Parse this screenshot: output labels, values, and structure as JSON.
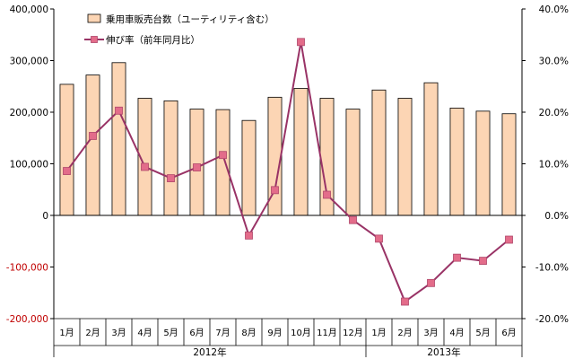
{
  "chart_data": {
    "type": "bar",
    "title": "",
    "categories": [
      "1月",
      "2月",
      "3月",
      "4月",
      "5月",
      "6月",
      "7月",
      "8月",
      "9月",
      "10月",
      "11月",
      "12月",
      "1月",
      "2月",
      "3月",
      "4月",
      "5月",
      "6月"
    ],
    "year_groups": [
      {
        "label": "2012年",
        "count": 12
      },
      {
        "label": "2013年",
        "count": 6
      }
    ],
    "series": [
      {
        "name": "乗用車販売台数（ユーティリティ含む）",
        "type": "bar",
        "axis": "left",
        "values": [
          254000,
          272000,
          296000,
          227000,
          222000,
          206000,
          205000,
          184000,
          229000,
          246000,
          227000,
          206000,
          243000,
          227000,
          257000,
          208000,
          202000,
          197000
        ]
      },
      {
        "name": "伸び率（前年同月比）",
        "type": "line",
        "axis": "right",
        "values": [
          8.6,
          15.4,
          20.3,
          9.4,
          7.2,
          9.3,
          11.7,
          -3.9,
          4.9,
          33.6,
          4.0,
          -0.9,
          -4.5,
          -16.7,
          -13.1,
          -8.2,
          -8.8,
          -4.7
        ]
      }
    ],
    "left_axis": {
      "ylim": [
        -200000,
        400000
      ],
      "ticks": [
        400000,
        300000,
        200000,
        100000,
        0,
        -100000,
        -200000
      ],
      "tick_labels": [
        "400,000",
        "300,000",
        "200,000",
        "100,000",
        "0",
        "-100,000",
        "-200,000"
      ]
    },
    "right_axis": {
      "ylim": [
        -20,
        40
      ],
      "ticks": [
        40,
        30,
        20,
        10,
        0,
        -10,
        -20
      ],
      "tick_labels": [
        "40.0%",
        "30.0%",
        "20.0%",
        "10.0%",
        "0.0%",
        "-10.0%",
        "-20.0%"
      ]
    },
    "xlabel": "",
    "ylabel": "",
    "grid": false,
    "legend_position": "top-left",
    "colors": {
      "bar_fill": "#fcd5b4",
      "bar_stroke": "#000000",
      "line": "#993366",
      "marker": "#e36c8a",
      "marker_stroke": "#b0476a",
      "negative_tick": "#c00000"
    }
  }
}
